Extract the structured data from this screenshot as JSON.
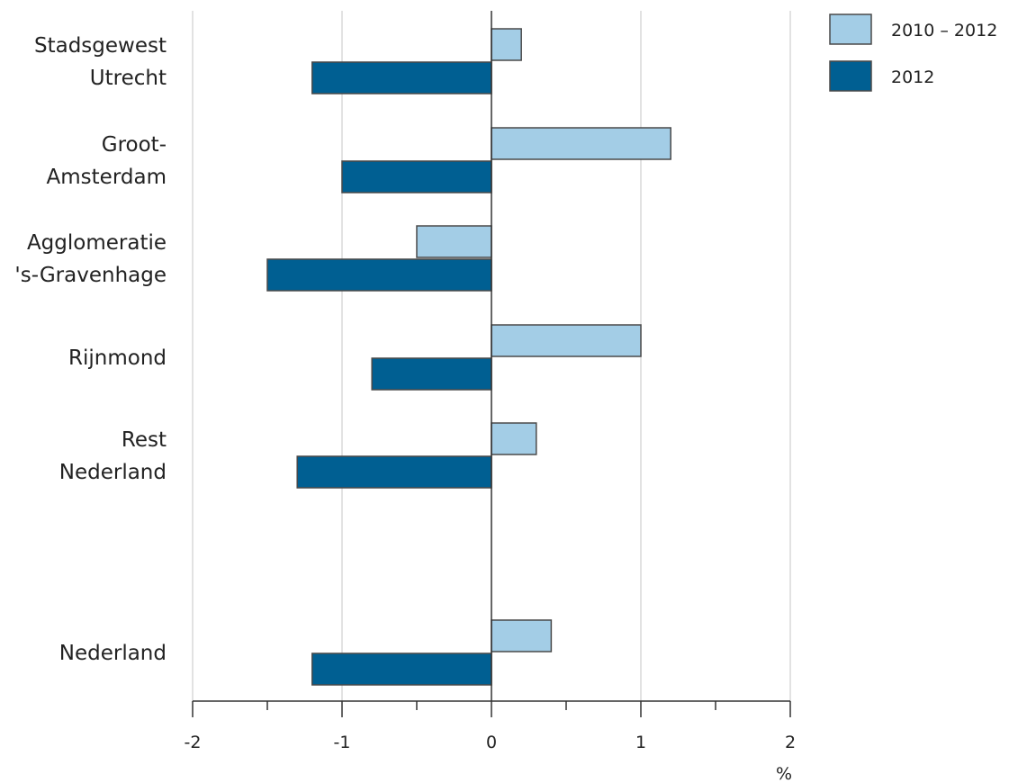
{
  "chart_data": {
    "type": "bar",
    "orientation": "horizontal",
    "categories": [
      [
        "Stadsgewest",
        "Utrecht"
      ],
      [
        "Groot-",
        "Amsterdam"
      ],
      [
        "Agglomeratie",
        "'s-Gravenhage"
      ],
      [
        "Rijnmond"
      ],
      [
        "Rest",
        "Nederland"
      ],
      [
        "Nederland"
      ]
    ],
    "series": [
      {
        "name": "2010 – 2012",
        "color": "#a3cde6",
        "values": [
          0.2,
          1.2,
          -0.5,
          1.0,
          0.3,
          0.4
        ]
      },
      {
        "name": "2012",
        "color": "#005f92",
        "values": [
          -1.2,
          -1.0,
          -1.5,
          -0.8,
          -1.3,
          -1.2
        ]
      }
    ],
    "xlim": [
      -2,
      2
    ],
    "xticks": [
      -2,
      -1,
      0,
      1,
      2
    ],
    "tick_labels": [
      "-2",
      "-1",
      "0",
      "1",
      "2"
    ],
    "xlabel": "%",
    "grid": true,
    "legend_position": "top-right"
  }
}
